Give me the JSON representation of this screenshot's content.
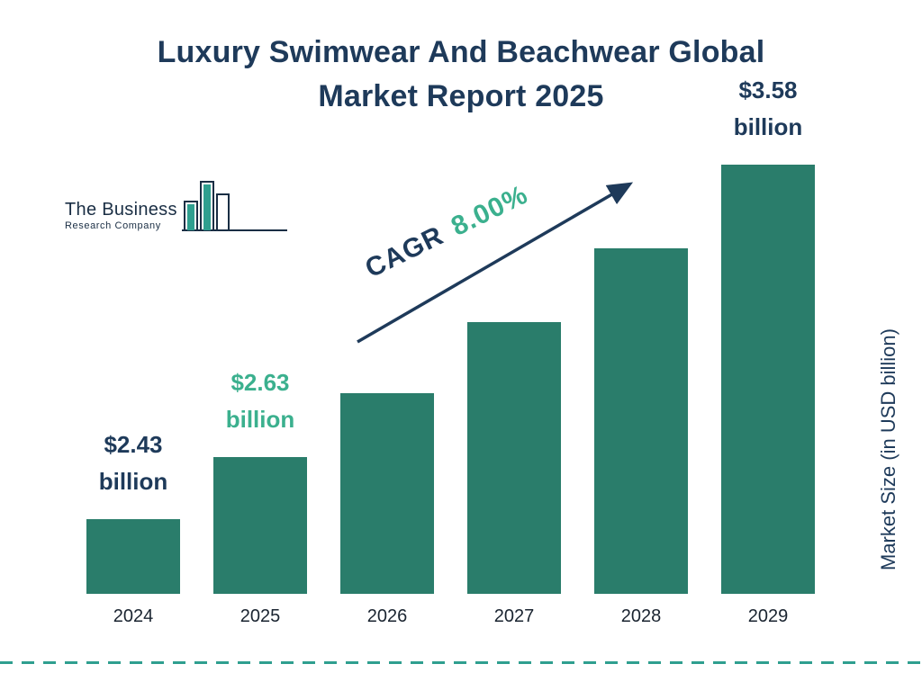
{
  "page": {
    "title_line1": "Luxury Swimwear And Beachwear Global",
    "title_line2": "Market Report 2025",
    "logo": {
      "name_line1": "The Business",
      "name_line2": "Research Company"
    },
    "cagr_label": "CAGR",
    "cagr_value": "8.00%",
    "y_axis_label": "Market Size (in USD billion)"
  },
  "colors": {
    "navy": "#1e3a5a",
    "green": "#3bb08e",
    "bar": "#2a7d6b",
    "dash": "#2f9f8f"
  },
  "chart_data": {
    "type": "bar",
    "title": "Luxury Swimwear And Beachwear Global Market Report 2025",
    "categories": [
      "2024",
      "2025",
      "2026",
      "2027",
      "2028",
      "2029"
    ],
    "values": [
      2.43,
      2.63,
      2.84,
      3.07,
      3.31,
      3.58
    ],
    "unit": "USD billion",
    "xlabel": "",
    "ylabel": "Market Size (in USD billion)",
    "cagr": "8.00%",
    "legend": "none",
    "grid": false,
    "bar_value_labels": [
      {
        "index": 0,
        "text_line1": "$2.43",
        "text_line2": "billion",
        "color": "navy"
      },
      {
        "index": 1,
        "text_line1": "$2.63",
        "text_line2": "billion",
        "color": "green"
      },
      {
        "index": 5,
        "text_line1": "$3.58",
        "text_line2": "billion",
        "color": "navy"
      }
    ]
  }
}
